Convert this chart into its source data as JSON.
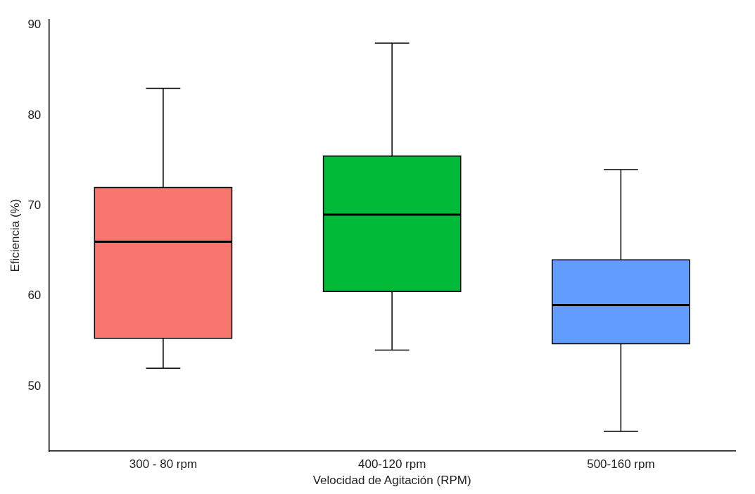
{
  "chart_data": {
    "type": "box",
    "xlabel": "Velocidad de Agitación (RPM)",
    "ylabel": "Eficiencia (%)",
    "categories": [
      "300 - 80 rpm",
      "400-120 rpm",
      "500-160 rpm"
    ],
    "colors": [
      "#f8766d",
      "#00ba38",
      "#619cff"
    ],
    "boxes": [
      {
        "low": 52,
        "q1": 55.3,
        "median": 66,
        "q3": 72,
        "high": 83
      },
      {
        "low": 54,
        "q1": 60.5,
        "median": 69,
        "q3": 75.5,
        "high": 88
      },
      {
        "low": 45,
        "q1": 54.7,
        "median": 59,
        "q3": 64,
        "high": 74
      }
    ],
    "ylim": [
      42.8,
      90.6
    ],
    "yticks": [
      50,
      60,
      70,
      80,
      90
    ],
    "grid": false,
    "legend": false
  }
}
